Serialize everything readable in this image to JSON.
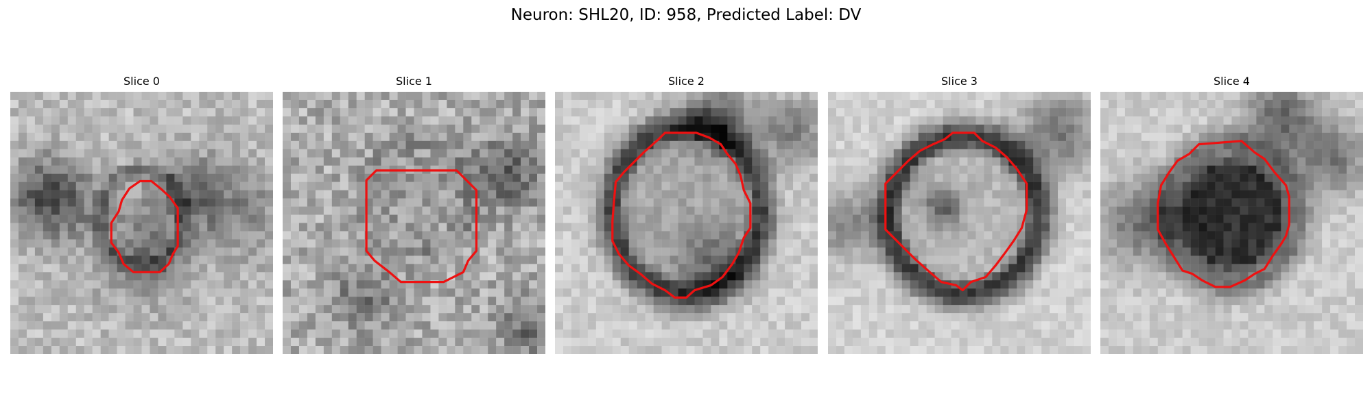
{
  "figure": {
    "title": "Neuron: SHL20, ID: 958, Predicted Label: DV"
  },
  "panels": [
    {
      "title": "Slice 0",
      "image": "grayscale-micrograph-slice-0"
    },
    {
      "title": "Slice 1",
      "image": "grayscale-micrograph-slice-1"
    },
    {
      "title": "Slice 2",
      "image": "grayscale-micrograph-slice-2"
    },
    {
      "title": "Slice 3",
      "image": "grayscale-micrograph-slice-3"
    },
    {
      "title": "Slice 4",
      "image": "grayscale-micrograph-slice-4"
    }
  ],
  "contour_color": "#ee1111"
}
